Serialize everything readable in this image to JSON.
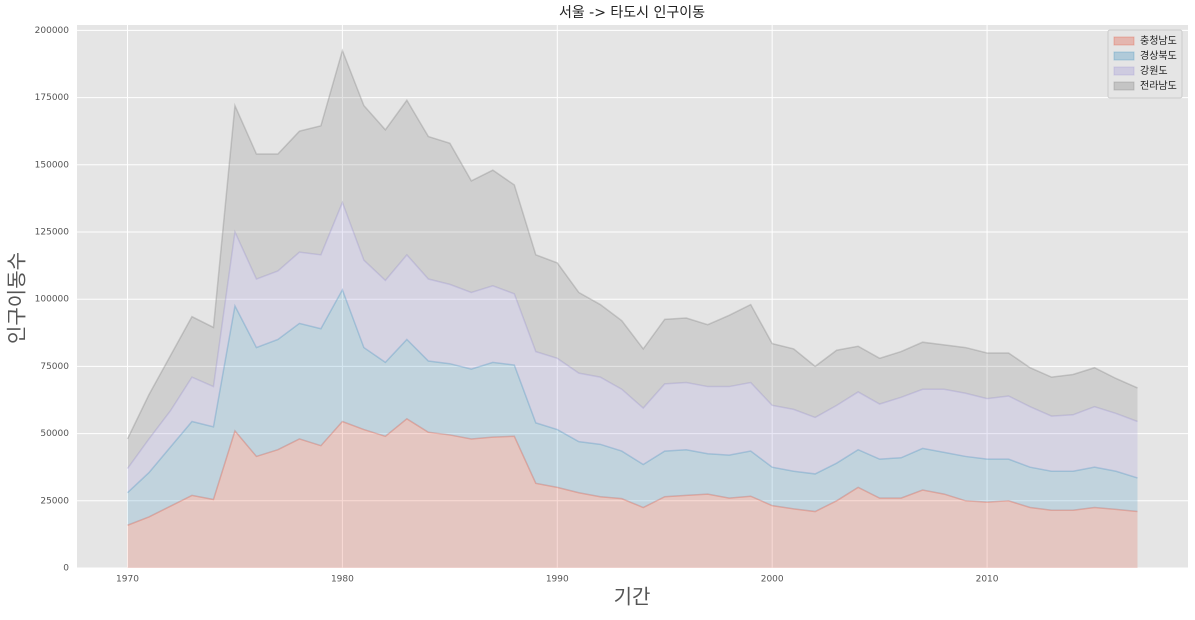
{
  "chart_data": {
    "type": "stacked_area",
    "title": "서울 -> 타도시 인구이동",
    "xlabel": "기간",
    "ylabel": "인구이동수",
    "x": [
      1970,
      1971,
      1972,
      1973,
      1974,
      1975,
      1976,
      1977,
      1978,
      1979,
      1980,
      1981,
      1982,
      1983,
      1984,
      1985,
      1986,
      1987,
      1988,
      1989,
      1990,
      1991,
      1992,
      1993,
      1994,
      1995,
      1996,
      1997,
      1998,
      1999,
      2000,
      2001,
      2002,
      2003,
      2004,
      2005,
      2006,
      2007,
      2008,
      2009,
      2010,
      2011,
      2012,
      2013,
      2014,
      2015,
      2016,
      2017
    ],
    "series": [
      {
        "name": "충청남도",
        "color": "#E24A33",
        "values": [
          15900,
          19000,
          23000,
          27000,
          25500,
          51000,
          41500,
          44000,
          48000,
          45500,
          54500,
          51500,
          49000,
          55500,
          50500,
          49500,
          48000,
          48700,
          49000,
          31500,
          30000,
          28000,
          26500,
          25800,
          22500,
          26500,
          27000,
          27500,
          26000,
          26700,
          23200,
          22000,
          21000,
          25000,
          30000,
          26000,
          26000,
          29000,
          27500,
          25000,
          24500,
          25000,
          22500,
          21500,
          21500,
          22500,
          21800,
          21000
        ]
      },
      {
        "name": "경상북도",
        "color": "#348ABD",
        "values": [
          12100,
          16500,
          22000,
          27500,
          27000,
          46500,
          40500,
          41000,
          43000,
          43500,
          49000,
          30500,
          27500,
          29500,
          26500,
          26500,
          26000,
          27800,
          26500,
          22500,
          21500,
          19000,
          19500,
          17700,
          16000,
          17000,
          17000,
          15000,
          16000,
          16800,
          14300,
          14000,
          14000,
          14000,
          14000,
          14500,
          15000,
          15500,
          15500,
          16500,
          16000,
          15500,
          15000,
          14500,
          14500,
          15000,
          14200,
          12500
        ]
      },
      {
        "name": "강원도",
        "color": "#988ED5",
        "values": [
          9000,
          12500,
          13500,
          16500,
          15000,
          27500,
          25500,
          25500,
          26500,
          27500,
          32500,
          32500,
          30500,
          31500,
          30500,
          29500,
          28500,
          28500,
          26500,
          26500,
          26500,
          25500,
          25000,
          23000,
          21000,
          25000,
          25000,
          25000,
          25500,
          25500,
          23000,
          23000,
          21000,
          21500,
          21500,
          20500,
          22500,
          22000,
          23500,
          23500,
          22500,
          23500,
          22500,
          20500,
          21000,
          22500,
          21500,
          21000
        ]
      },
      {
        "name": "전라남도",
        "color": "#777777",
        "values": [
          11000,
          16500,
          20500,
          22500,
          22000,
          47000,
          46500,
          43500,
          45000,
          48000,
          56500,
          57500,
          56000,
          57500,
          53000,
          52500,
          41500,
          43000,
          40500,
          36000,
          35500,
          30000,
          27000,
          25500,
          22000,
          24000,
          24000,
          23000,
          26500,
          29000,
          23000,
          22500,
          19000,
          20500,
          17000,
          17000,
          17000,
          17500,
          16500,
          17000,
          17000,
          16000,
          14500,
          14500,
          15000,
          14500,
          13000,
          12500
        ]
      }
    ],
    "alpha": 0.2,
    "xlim": [
      1967.65,
      2019.35
    ],
    "xticks": [
      1970,
      1980,
      1990,
      2000,
      2010
    ],
    "ylim": [
      0,
      202000
    ],
    "yticks": [
      0,
      25000,
      50000,
      75000,
      100000,
      125000,
      150000,
      175000,
      200000
    ],
    "grid": true,
    "legend": "upper right"
  }
}
